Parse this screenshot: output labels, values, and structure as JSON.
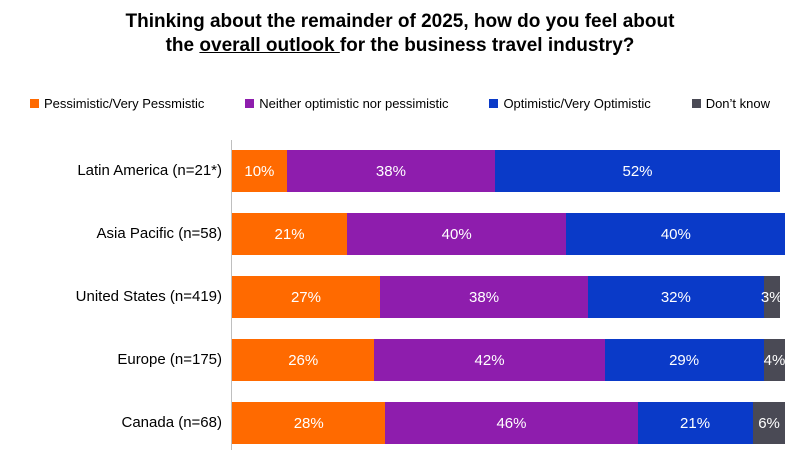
{
  "chart_data": {
    "type": "bar",
    "orientation": "horizontal",
    "stacked": true,
    "title_parts": [
      "Thinking about the remainder of 2025, how do you feel about",
      "the ",
      "overall outlook ",
      "for the business travel industry?"
    ],
    "categories": [
      "Latin America (n=21*)",
      "Asia Pacific (n=58)",
      "United States (n=419)",
      "Europe (n=175)",
      "Canada (n=68)"
    ],
    "series": [
      {
        "name": "Pessimistic/Very Pessmistic",
        "color": "#ff6a00",
        "values": [
          10,
          21,
          27,
          26,
          28
        ]
      },
      {
        "name": "Neither optimistic nor pessimistic",
        "color": "#8e1dad",
        "values": [
          38,
          40,
          38,
          42,
          46
        ]
      },
      {
        "name": "Optimistic/Very Optimistic",
        "color": "#0a3ac8",
        "values": [
          52,
          40,
          32,
          29,
          21
        ]
      },
      {
        "name": "Don’t know",
        "color": "#4a4a55",
        "values": [
          0,
          0,
          3,
          4,
          6
        ]
      }
    ],
    "xlim": [
      0,
      100
    ],
    "value_suffix": "%",
    "legend": "top",
    "grid": false
  }
}
